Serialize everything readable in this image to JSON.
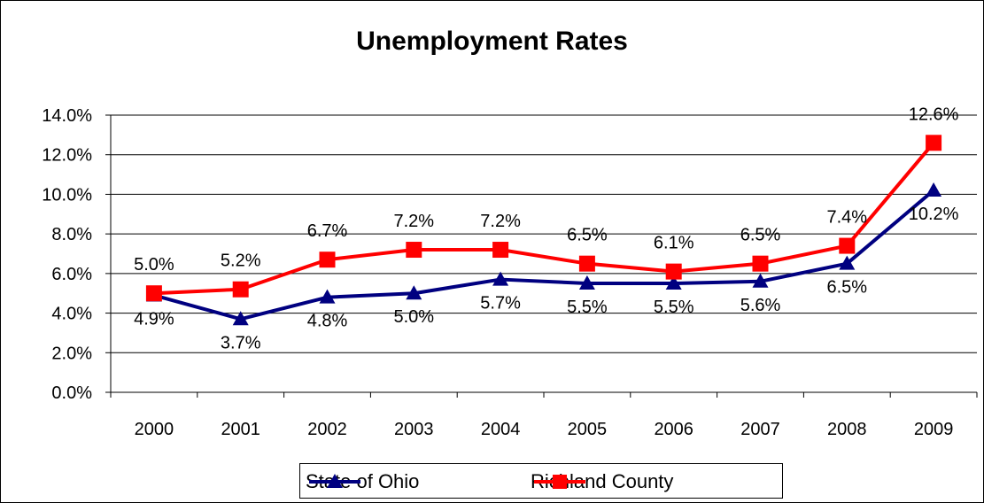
{
  "chart_data": {
    "type": "line",
    "title": "Unemployment Rates",
    "xlabel": "",
    "ylabel": "",
    "categories": [
      "2000",
      "2001",
      "2002",
      "2003",
      "2004",
      "2005",
      "2006",
      "2007",
      "2008",
      "2009"
    ],
    "ylim": [
      0,
      14
    ],
    "yticks": [
      "0.0%",
      "2.0%",
      "4.0%",
      "6.0%",
      "8.0%",
      "10.0%",
      "12.0%",
      "14.0%"
    ],
    "grid": true,
    "legend_position": "bottom",
    "series": [
      {
        "name": "State of Ohio",
        "color": "#000080",
        "marker": "triangle",
        "values": [
          4.9,
          3.7,
          4.8,
          5.0,
          5.7,
          5.5,
          5.5,
          5.6,
          6.5,
          10.2
        ],
        "labels": [
          "4.9%",
          "3.7%",
          "4.8%",
          "5.0%",
          "5.7%",
          "5.5%",
          "5.5%",
          "5.6%",
          "6.5%",
          "10.2%"
        ]
      },
      {
        "name": "Richland County",
        "color": "#ff0000",
        "marker": "square",
        "values": [
          5.0,
          5.2,
          6.7,
          7.2,
          7.2,
          6.5,
          6.1,
          6.5,
          7.4,
          12.6
        ],
        "labels": [
          "5.0%",
          "5.2%",
          "6.7%",
          "7.2%",
          "7.2%",
          "6.5%",
          "6.1%",
          "6.5%",
          "7.4%",
          "12.6%"
        ]
      }
    ]
  }
}
